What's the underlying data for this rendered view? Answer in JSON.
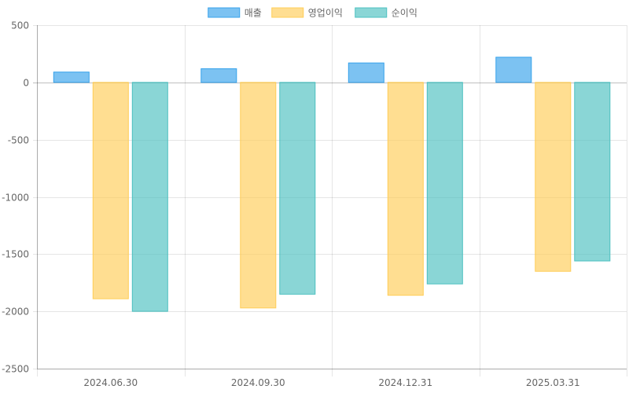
{
  "chart_data": {
    "type": "bar",
    "categories": [
      "2024.06.30",
      "2024.09.30",
      "2024.12.31",
      "2025.03.31"
    ],
    "series": [
      {
        "name": "매출",
        "values": [
          90,
          120,
          170,
          220
        ],
        "color": "#36A2EB"
      },
      {
        "name": "영업이익",
        "values": [
          -1890,
          -1970,
          -1860,
          -1650
        ],
        "color": "#FFCD56"
      },
      {
        "name": "순이익",
        "values": [
          -2000,
          -1850,
          -1760,
          -1560
        ],
        "color": "#4BC0C0"
      }
    ],
    "ylim": [
      -2500,
      500
    ],
    "yticks": [
      500,
      0,
      -500,
      -1000,
      -1500,
      -2000,
      -2500
    ],
    "grid": true,
    "legend_position": "top-center"
  }
}
